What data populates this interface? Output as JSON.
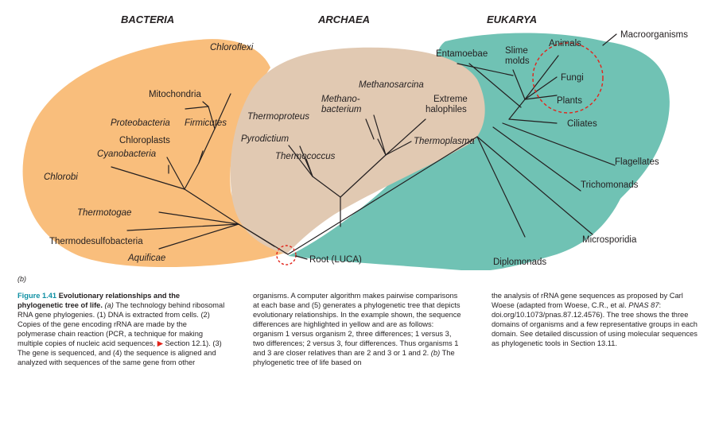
{
  "domains": {
    "bacteria": "BACTERIA",
    "archaea": "ARCHAEA",
    "eukarya": "EUKARYA"
  },
  "labels": {
    "chloroflexi": "Chloroflexi",
    "mitochondria": "Mitochondria",
    "proteobacteria": "Proteobacteria",
    "firmicutes": "Firmicutes",
    "chloroplasts": "Chloroplasts",
    "cyanobacteria": "Cyanobacteria",
    "chlorobi": "Chlorobi",
    "thermotogae": "Thermotogae",
    "thermodesulfobacteria": "Thermodesulfobacteria",
    "aquificae": "Aquificae",
    "methanosarcina": "Methanosarcina",
    "methanobacterium_1": "Methano-",
    "methanobacterium_2": "bacterium",
    "extreme_halophiles_1": "Extreme",
    "extreme_halophiles_2": "halophiles",
    "thermoproteus": "Thermoproteus",
    "pyrodictium": "Pyrodictium",
    "thermococcus": "Thermococcus",
    "thermoplasma": "Thermoplasma",
    "entamoebae": "Entamoebae",
    "slime_molds_1": "Slime",
    "slime_molds_2": "molds",
    "animals": "Animals",
    "fungi": "Fungi",
    "plants": "Plants",
    "ciliates": "Ciliates",
    "flagellates": "Flagellates",
    "trichomonads": "Trichomonads",
    "microsporidia": "Microsporidia",
    "diplomonads": "Diplomonads",
    "macroorganisms": "Macroorganisms",
    "root": "Root (LUCA)"
  },
  "part_label": "(b)",
  "caption": {
    "fig_num": "Figure 1.41",
    "fig_title": "Evolutionary relationships and the phylogenetic tree of life.",
    "a_label": "(a)",
    "col1_text": "The technology behind ribosomal RNA gene phylogenies. (1) DNA is extracted from cells. (2) Copies of the gene encoding rRNA are made by the polymerase chain reaction (PCR, a technique for making multiple copies of nucleic acid sequences,",
    "arrow": "▶",
    "col1_ref": "Section 12.1). (3) The gene is sequenced, and (4) the sequence is aligned and analyzed with sequences of the same gene from other",
    "col2_text": "organisms. A computer algorithm makes pairwise comparisons at each base and (5) generates a phylogenetic tree that depicts evolutionary relationships. In the example shown, the sequence differences are highlighted in yellow and are as follows: organism 1 versus organism 2, three differences; 1 versus 3, two differences; 2 versus 3, four differences. Thus organisms 1 and 3 are closer relatives than are 2 and 3 or 1 and 2.",
    "b_label": "(b)",
    "col2_tail": "The phylogenetic tree of life based on",
    "col3_text": "the analysis of rRNA gene sequences as proposed by Carl Woese (adapted from Woese, C.R., et al.",
    "col3_cite": "PNAS 87",
    "col3_rest": ": doi.org/10.1073/pnas.87.12.4576). The tree shows the three domains of organisms and a few representative groups in each domain. See detailed discussion of using molecular sequences as phylogenetic tools in Section 13.11."
  },
  "colors": {
    "bacteria": "#f9be7c",
    "archaea": "#e1c9b2",
    "eukarya": "#70c2b4",
    "circle": "#e2231a",
    "figure_number": "#0d8fa3"
  }
}
